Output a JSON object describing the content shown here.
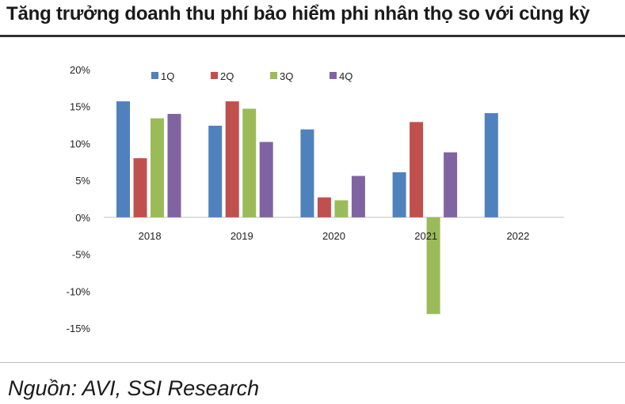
{
  "title": "Tăng trưởng doanh thu phí bảo hiểm phi nhân thọ so với cùng kỳ",
  "source": "Nguồn: AVI, SSI Research",
  "chart_data": {
    "type": "bar",
    "categories": [
      "2018",
      "2019",
      "2020",
      "2021",
      "2022"
    ],
    "series": [
      {
        "name": "1Q",
        "color": "#4f81bd",
        "values": [
          15.7,
          12.4,
          11.9,
          6.1,
          14.1
        ]
      },
      {
        "name": "2Q",
        "color": "#c0504d",
        "values": [
          8.0,
          15.7,
          2.7,
          12.9,
          null
        ]
      },
      {
        "name": "3Q",
        "color": "#9bbb59",
        "values": [
          13.4,
          14.7,
          2.3,
          -13.1,
          null
        ]
      },
      {
        "name": "4Q",
        "color": "#8064a2",
        "values": [
          14.0,
          10.2,
          5.6,
          8.8,
          null
        ]
      }
    ],
    "ylim": [
      -15,
      20
    ],
    "yticks": [
      20,
      15,
      10,
      5,
      0,
      -5,
      -10,
      -15
    ],
    "ytick_labels": [
      "20%",
      "15%",
      "10%",
      "5%",
      "0%",
      "-5%",
      "-10%",
      "-15%"
    ],
    "xlabel": "",
    "ylabel": "",
    "legend_position": "top"
  }
}
